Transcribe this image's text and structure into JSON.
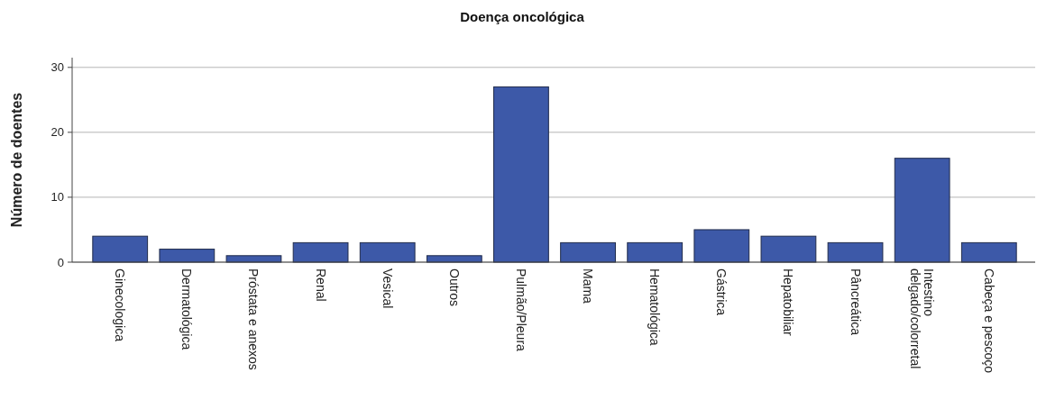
{
  "chart_data": {
    "type": "bar",
    "title": "Doença oncológica",
    "ylabel": "Número de doentes",
    "categories": [
      "Ginecologica",
      "Dermatológica",
      "Próstata e anexos",
      "Renal",
      "Vesical",
      "Outros",
      "Pulmão/Pleura",
      "Mama",
      "Hematológica",
      "Gástrica",
      "Hepatobiliar",
      "Pâncreática",
      "Intestino delgado/colorretal",
      "Cabeça e pescoço"
    ],
    "values": [
      4,
      2,
      1,
      3,
      3,
      1,
      27,
      3,
      3,
      5,
      4,
      3,
      16,
      3
    ],
    "color": "#3d59a8",
    "ylim": [
      0,
      31.5
    ],
    "yticks": [
      0,
      10,
      20,
      30
    ],
    "grid": "y"
  }
}
